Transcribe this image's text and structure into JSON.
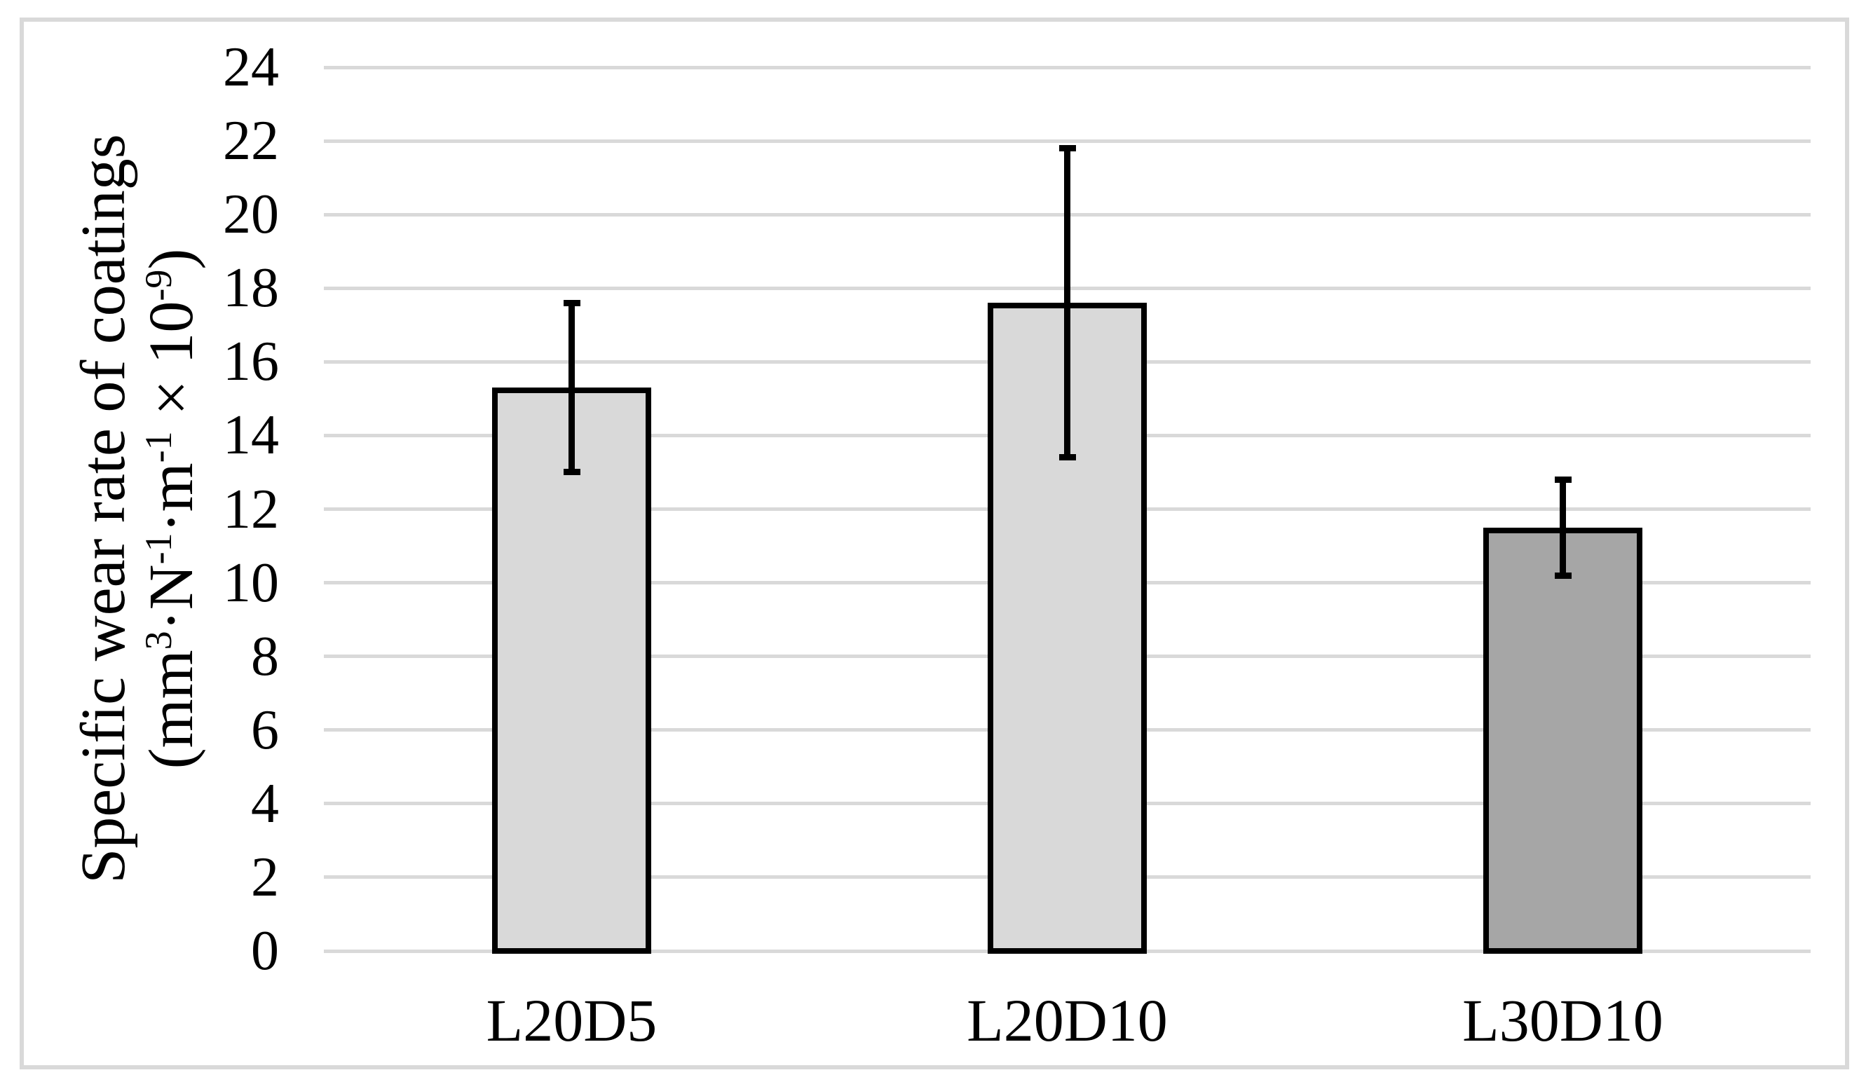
{
  "figure": {
    "background": "#ffffff",
    "border_color": "#d9d9d9"
  },
  "chart_data": {
    "type": "bar",
    "title": "",
    "categories": [
      "L20D5",
      "L20D10",
      "L30D10"
    ],
    "values": [
      15.3,
      17.6,
      11.5
    ],
    "error_bars": [
      2.3,
      4.2,
      1.3
    ],
    "bar_colors": [
      "#d9d9d9",
      "#d9d9d9",
      "#a6a6a6"
    ],
    "bar_border_color": "#000000",
    "error_bar_color": "#000000",
    "xlabel": "",
    "ylabel": "Specific wear rate of coatings (mm³·N⁻¹·m⁻¹ × 10⁻⁹)",
    "ylabel_line1": "Specific wear rate of coatings",
    "ylabel_line2_segments": [
      {
        "text": "(mm",
        "sup": false
      },
      {
        "text": "3",
        "sup": true
      },
      {
        "text": "·N",
        "sup": false
      },
      {
        "text": "-1",
        "sup": true
      },
      {
        "text": "·m",
        "sup": false
      },
      {
        "text": "-1",
        "sup": true
      },
      {
        "text": " × 10",
        "sup": false
      },
      {
        "text": "-9",
        "sup": true
      },
      {
        "text": ")",
        "sup": false
      }
    ],
    "ylim": [
      0,
      24
    ],
    "ytick_step": 2,
    "ytick_labels": [
      "0",
      "2",
      "4",
      "6",
      "8",
      "10",
      "12",
      "14",
      "16",
      "18",
      "20",
      "22",
      "24"
    ],
    "grid": "horizontal",
    "gridline_color": "#d9d9d9",
    "legend_position": "none"
  }
}
